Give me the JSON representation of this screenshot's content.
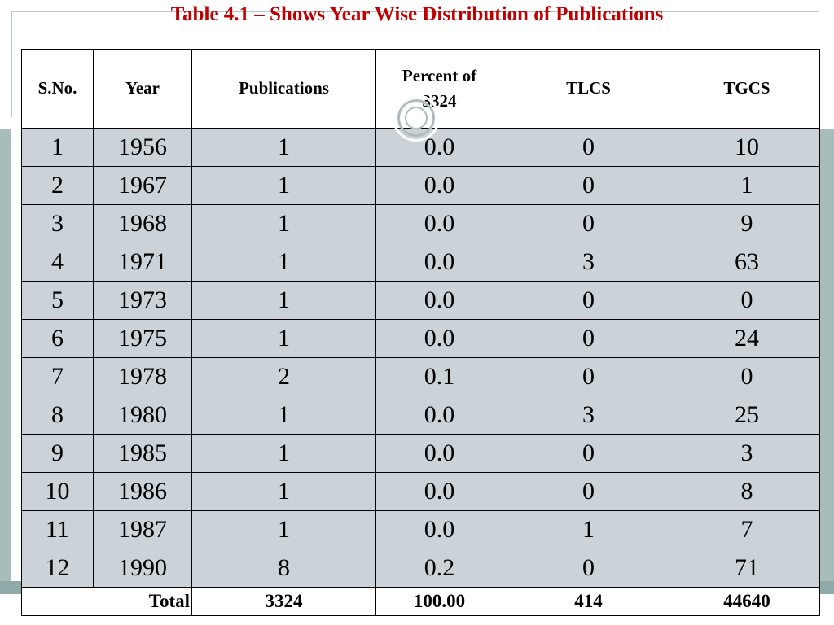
{
  "title": "Table 4.1 – Shows Year Wise Distribution of Publications",
  "table": {
    "headers": {
      "sno": "S.No.",
      "year": "Year",
      "publications": "Publications",
      "percent_line1": "Percent of",
      "percent_line2": "3324",
      "tlcs": "TLCS",
      "tgcs": "TGCS"
    },
    "rows": [
      {
        "sno": "1",
        "year": "1956",
        "publications": "1",
        "percent": "0.0",
        "tlcs": "0",
        "tgcs": "10"
      },
      {
        "sno": "2",
        "year": "1967",
        "publications": "1",
        "percent": "0.0",
        "tlcs": "0",
        "tgcs": "1"
      },
      {
        "sno": "3",
        "year": "1968",
        "publications": "1",
        "percent": "0.0",
        "tlcs": "0",
        "tgcs": "9"
      },
      {
        "sno": "4",
        "year": "1971",
        "publications": "1",
        "percent": "0.0",
        "tlcs": "3",
        "tgcs": "63"
      },
      {
        "sno": "5",
        "year": "1973",
        "publications": "1",
        "percent": "0.0",
        "tlcs": "0",
        "tgcs": "0"
      },
      {
        "sno": "6",
        "year": "1975",
        "publications": "1",
        "percent": "0.0",
        "tlcs": "0",
        "tgcs": "24"
      },
      {
        "sno": "7",
        "year": "1978",
        "publications": "2",
        "percent": "0.1",
        "tlcs": "0",
        "tgcs": "0"
      },
      {
        "sno": "8",
        "year": "1980",
        "publications": "1",
        "percent": "0.0",
        "tlcs": "3",
        "tgcs": "25"
      },
      {
        "sno": "9",
        "year": "1985",
        "publications": "1",
        "percent": "0.0",
        "tlcs": "0",
        "tgcs": "3"
      },
      {
        "sno": "10",
        "year": "1986",
        "publications": "1",
        "percent": "0.0",
        "tlcs": "0",
        "tgcs": "8"
      },
      {
        "sno": "11",
        "year": "1987",
        "publications": "1",
        "percent": "0.0",
        "tlcs": "1",
        "tgcs": "7"
      },
      {
        "sno": "12",
        "year": "1990",
        "publications": "8",
        "percent": "0.2",
        "tlcs": "0",
        "tgcs": "71"
      }
    ],
    "total": {
      "label": "Total",
      "publications": "3324",
      "percent": "100.00",
      "tlcs": "414",
      "tgcs": "44640"
    }
  },
  "colors": {
    "title": "#c00000",
    "row_fill": "#cbd3d9",
    "accent_band": "#8fa9a9"
  },
  "icons": {
    "decoration": "ring-icon"
  }
}
